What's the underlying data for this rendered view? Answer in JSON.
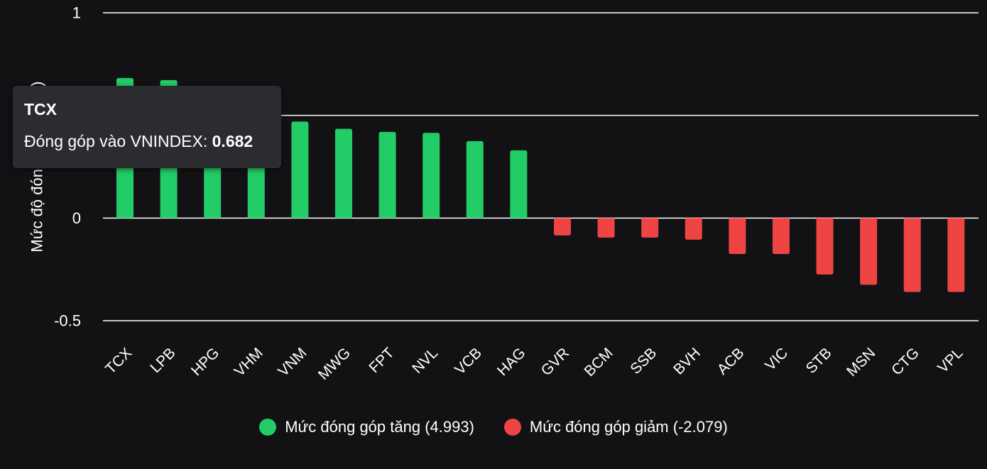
{
  "chart_data": {
    "type": "bar",
    "ylabel": "Mức độ đóng góp (điểm)",
    "ylim": [
      -0.5,
      1
    ],
    "yticks": [
      "1",
      "0",
      "-0.5"
    ],
    "ytick_values": [
      1,
      0,
      -0.5
    ],
    "gridlines": [
      1,
      0.5,
      0,
      -0.5
    ],
    "categories": [
      "TCX",
      "LPB",
      "HPG",
      "VHM",
      "VNM",
      "MWG",
      "FPT",
      "NVL",
      "VCB",
      "HAG",
      "GVR",
      "BCM",
      "SSB",
      "BVH",
      "ACB",
      "VIC",
      "STB",
      "MSN",
      "CTG",
      "VPL"
    ],
    "values": [
      0.682,
      0.672,
      0.54,
      0.52,
      0.47,
      0.435,
      0.42,
      0.415,
      0.375,
      0.33,
      -0.085,
      -0.095,
      -0.095,
      -0.105,
      -0.175,
      -0.175,
      -0.275,
      -0.325,
      -0.36,
      -0.36
    ],
    "colors": {
      "positive": "#22cc66",
      "negative": "#ee4444"
    },
    "legend": {
      "placement": "bottom-center",
      "items": [
        {
          "label": "Mức đóng góp tăng (4.993)",
          "color": "#22cc66"
        },
        {
          "label": "Mức đóng góp giảm (-2.079)",
          "color": "#ee4444"
        }
      ]
    },
    "tooltip": {
      "title": "TCX",
      "label": "Đóng góp vào VNINDEX: ",
      "value": "0.682"
    }
  }
}
